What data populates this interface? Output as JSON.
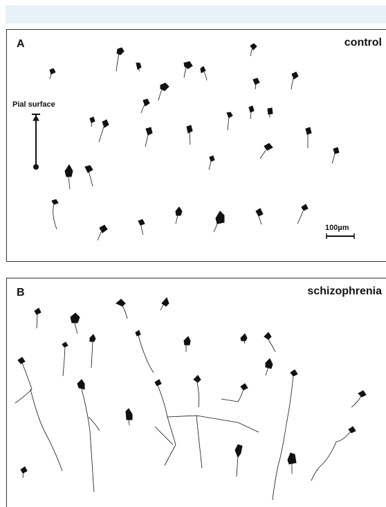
{
  "panel_a": {
    "letter": "A",
    "condition": "control",
    "pial_label": "Pial surface",
    "scale_label": "100µm"
  },
  "panel_b": {
    "letter": "B",
    "condition": "schizophrenia"
  },
  "colors": {
    "header_band": "#e6f2f7",
    "ink": "#111111"
  }
}
